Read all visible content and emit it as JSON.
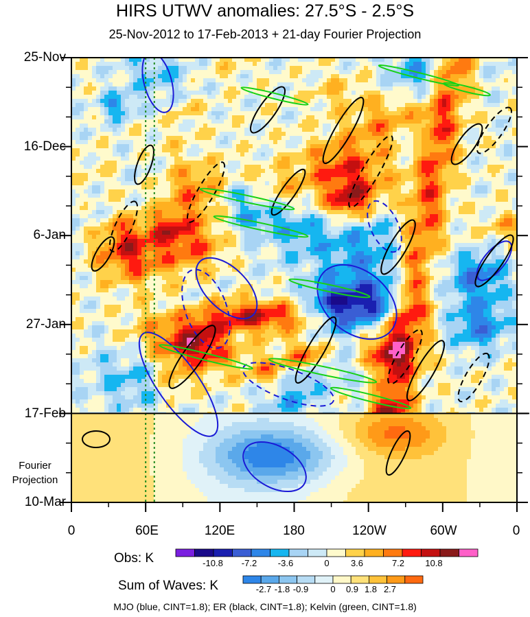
{
  "colors": {
    "mjo": "#1a1ad6",
    "er": "#000000",
    "kelvin": "#17d117",
    "divider": "#000000",
    "dotted": "#1f8a1f"
  },
  "chart_data": {
    "type": "heatmap",
    "title": "HIRS UTWV anomalies: 27.5°S - 2.5°S",
    "subtitle": "25-Nov-2012 to 17-Feb-2013 + 21-day Fourier Projection",
    "x_ticks": [
      "0",
      "60E",
      "120E",
      "180",
      "120W",
      "60W",
      "0"
    ],
    "x_tick_values": [
      0,
      60,
      120,
      180,
      240,
      300,
      360
    ],
    "y_ticks": [
      "25-Nov",
      "16-Dec",
      "6-Jan",
      "27-Jan",
      "17-Feb",
      "10-Mar"
    ],
    "y_tick_values": [
      "2012-11-25",
      "2012-12-16",
      "2013-01-06",
      "2013-01-27",
      "2013-02-17",
      "2013-03-10"
    ],
    "projection_label": "Fourier Projection",
    "projection_start": "2013-02-17",
    "dotted_lon_lines": [
      60,
      67
    ],
    "obs_colorbar": {
      "label": "Obs: K",
      "colors": [
        "#7a1fe0",
        "#1a0a8a",
        "#1a1fb0",
        "#3a5ed4",
        "#2e86e8",
        "#16b6f0",
        "#a8d4f4",
        "#cde9f6",
        "#fffacc",
        "#ffd24a",
        "#ffb020",
        "#ff7a10",
        "#ff1a10",
        "#c41010",
        "#8a1a1a",
        "#ff60c8"
      ],
      "tick_labels": [
        "-10.8",
        "-7.2",
        "-3.6",
        "0",
        "3.6",
        "7.2",
        "10.8"
      ]
    },
    "waves_colorbar": {
      "label": "Sum of Waves: K",
      "colors": [
        "#2e86e8",
        "#5aa8ea",
        "#8cc6f0",
        "#b7dcf4",
        "#e0f2f8",
        "#fff8c8",
        "#ffe17a",
        "#ffc23a",
        "#ff9a18",
        "#ff6a10"
      ],
      "tick_labels": [
        "-2.7",
        "-1.8",
        "-0.9",
        "0",
        "0.9",
        "1.8",
        "2.7"
      ]
    },
    "legend": "MJO (blue, CINT=1.8); ER (black, CINT=1.8); Kelvin (green, CINT=1.8)"
  }
}
